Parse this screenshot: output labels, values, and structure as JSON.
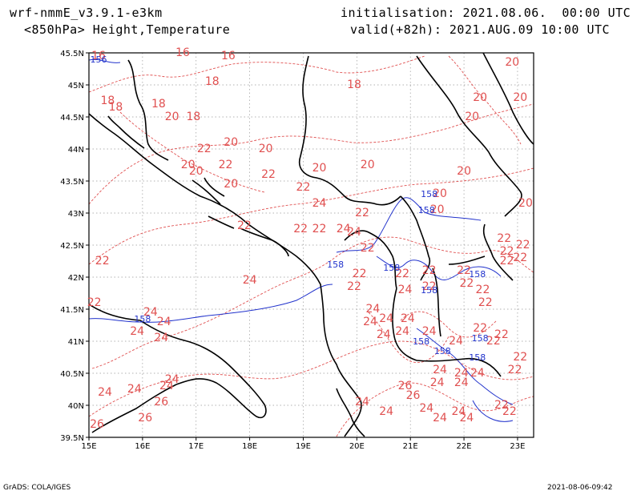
{
  "header": {
    "model": "wrf-nmmE_v3.9.1-e3km",
    "fields": "<850hPa> Height,Temperature",
    "init": "initialisation: 2021.08.06.  00:00 UTC",
    "valid": "valid(+82h): 2021.AUG.09 10:00 UTC"
  },
  "footer": {
    "credit": "GrADS: COLA/IGES",
    "stamp": "2021-08-06-09:42"
  },
  "axes": {
    "lon_ticks": [
      "15E",
      "16E",
      "17E",
      "18E",
      "19E",
      "20E",
      "21E",
      "22E",
      "23E"
    ],
    "lat_ticks": [
      "45.5N",
      "45N",
      "44.5N",
      "44N",
      "43.5N",
      "43N",
      "42.5N",
      "42N",
      "41.5N",
      "41N",
      "40.5N",
      "40N",
      "39.5N"
    ],
    "lon_range": [
      15,
      23.3
    ],
    "lat_range": [
      39.5,
      45.5
    ]
  },
  "colors": {
    "temperature": "#e05050",
    "height": "#2233cc",
    "coast": "#000000",
    "grid": "#999999"
  },
  "temperature_labels": [
    {
      "text": "16",
      "lon": 15.18,
      "lat": 45.4
    },
    {
      "text": "16",
      "lon": 16.75,
      "lat": 45.45
    },
    {
      "text": "16",
      "lon": 17.6,
      "lat": 45.4
    },
    {
      "text": "18",
      "lon": 15.35,
      "lat": 44.7
    },
    {
      "text": "18",
      "lon": 15.5,
      "lat": 44.6
    },
    {
      "text": "18",
      "lon": 16.3,
      "lat": 44.65
    },
    {
      "text": "18",
      "lon": 17.3,
      "lat": 45.0
    },
    {
      "text": "18",
      "lon": 19.95,
      "lat": 44.95
    },
    {
      "text": "18",
      "lon": 16.95,
      "lat": 44.45
    },
    {
      "text": "20",
      "lon": 16.55,
      "lat": 44.45
    },
    {
      "text": "20",
      "lon": 17.65,
      "lat": 44.05
    },
    {
      "text": "20",
      "lon": 18.3,
      "lat": 43.95
    },
    {
      "text": "20",
      "lon": 16.85,
      "lat": 43.7
    },
    {
      "text": "20",
      "lon": 17.0,
      "lat": 43.6
    },
    {
      "text": "20",
      "lon": 17.65,
      "lat": 43.4
    },
    {
      "text": "20",
      "lon": 19.3,
      "lat": 43.65
    },
    {
      "text": "20",
      "lon": 20.2,
      "lat": 43.7
    },
    {
      "text": "20",
      "lon": 22.3,
      "lat": 44.75
    },
    {
      "text": "20",
      "lon": 22.15,
      "lat": 44.45
    },
    {
      "text": "20",
      "lon": 22.9,
      "lat": 45.3
    },
    {
      "text": "20",
      "lon": 23.05,
      "lat": 44.75
    },
    {
      "text": "20",
      "lon": 22.0,
      "lat": 43.6
    },
    {
      "text": "20",
      "lon": 21.55,
      "lat": 43.25
    },
    {
      "text": "20",
      "lon": 21.5,
      "lat": 43.0
    },
    {
      "text": "20",
      "lon": 23.15,
      "lat": 43.1
    },
    {
      "text": "22",
      "lon": 17.15,
      "lat": 43.95
    },
    {
      "text": "22",
      "lon": 17.55,
      "lat": 43.7
    },
    {
      "text": "22",
      "lon": 18.35,
      "lat": 43.55
    },
    {
      "text": "22",
      "lon": 19.0,
      "lat": 43.35
    },
    {
      "text": "22",
      "lon": 18.95,
      "lat": 42.7
    },
    {
      "text": "22",
      "lon": 19.3,
      "lat": 42.7
    },
    {
      "text": "22",
      "lon": 20.1,
      "lat": 42.95
    },
    {
      "text": "22",
      "lon": 17.9,
      "lat": 42.75
    },
    {
      "text": "22",
      "lon": 15.25,
      "lat": 42.2
    },
    {
      "text": "22",
      "lon": 15.1,
      "lat": 41.55
    },
    {
      "text": "22",
      "lon": 20.2,
      "lat": 42.4
    },
    {
      "text": "22",
      "lon": 20.05,
      "lat": 42.0
    },
    {
      "text": "22",
      "lon": 19.95,
      "lat": 41.8
    },
    {
      "text": "22",
      "lon": 20.85,
      "lat": 42.0
    },
    {
      "text": "22",
      "lon": 21.35,
      "lat": 42.05
    },
    {
      "text": "22",
      "lon": 21.35,
      "lat": 41.8
    },
    {
      "text": "22",
      "lon": 22.0,
      "lat": 42.05
    },
    {
      "text": "22",
      "lon": 22.05,
      "lat": 41.85
    },
    {
      "text": "22",
      "lon": 22.35,
      "lat": 41.75
    },
    {
      "text": "22",
      "lon": 22.4,
      "lat": 41.55
    },
    {
      "text": "22",
      "lon": 22.75,
      "lat": 42.55
    },
    {
      "text": "22",
      "lon": 22.8,
      "lat": 42.35
    },
    {
      "text": "22",
      "lon": 22.8,
      "lat": 42.2
    },
    {
      "text": "22",
      "lon": 23.1,
      "lat": 42.45
    },
    {
      "text": "22",
      "lon": 23.05,
      "lat": 42.25
    },
    {
      "text": "22",
      "lon": 22.3,
      "lat": 41.15
    },
    {
      "text": "22",
      "lon": 22.7,
      "lat": 41.05
    },
    {
      "text": "22",
      "lon": 22.55,
      "lat": 40.95
    },
    {
      "text": "22",
      "lon": 23.05,
      "lat": 40.7
    },
    {
      "text": "22",
      "lon": 22.95,
      "lat": 40.5
    },
    {
      "text": "22",
      "lon": 22.7,
      "lat": 39.95
    },
    {
      "text": "22",
      "lon": 22.85,
      "lat": 39.85
    },
    {
      "text": "24",
      "lon": 18.0,
      "lat": 41.9
    },
    {
      "text": "24",
      "lon": 16.15,
      "lat": 41.4
    },
    {
      "text": "24",
      "lon": 16.4,
      "lat": 41.25
    },
    {
      "text": "24",
      "lon": 15.9,
      "lat": 41.1
    },
    {
      "text": "24",
      "lon": 16.35,
      "lat": 41.0
    },
    {
      "text": "24",
      "lon": 19.3,
      "lat": 43.1
    },
    {
      "text": "24",
      "lon": 19.75,
      "lat": 42.7
    },
    {
      "text": "24",
      "lon": 19.95,
      "lat": 42.65
    },
    {
      "text": "24",
      "lon": 20.3,
      "lat": 41.45
    },
    {
      "text": "24",
      "lon": 20.55,
      "lat": 41.3
    },
    {
      "text": "24",
      "lon": 20.25,
      "lat": 41.25
    },
    {
      "text": "24",
      "lon": 20.5,
      "lat": 41.05
    },
    {
      "text": "24",
      "lon": 20.9,
      "lat": 41.75
    },
    {
      "text": "24",
      "lon": 20.95,
      "lat": 41.3
    },
    {
      "text": "24",
      "lon": 20.85,
      "lat": 41.1
    },
    {
      "text": "24",
      "lon": 21.35,
      "lat": 41.1
    },
    {
      "text": "24",
      "lon": 21.85,
      "lat": 40.95
    },
    {
      "text": "24",
      "lon": 21.55,
      "lat": 40.5
    },
    {
      "text": "24",
      "lon": 21.5,
      "lat": 40.3
    },
    {
      "text": "24",
      "lon": 21.95,
      "lat": 40.45
    },
    {
      "text": "24",
      "lon": 21.95,
      "lat": 40.3
    },
    {
      "text": "24",
      "lon": 22.25,
      "lat": 40.45
    },
    {
      "text": "24",
      "lon": 15.3,
      "lat": 40.15
    },
    {
      "text": "24",
      "lon": 15.85,
      "lat": 40.2
    },
    {
      "text": "24",
      "lon": 16.45,
      "lat": 40.25
    },
    {
      "text": "24",
      "lon": 16.55,
      "lat": 40.35
    },
    {
      "text": "24",
      "lon": 20.1,
      "lat": 40.0
    },
    {
      "text": "24",
      "lon": 20.55,
      "lat": 39.85
    },
    {
      "text": "24",
      "lon": 21.3,
      "lat": 39.9
    },
    {
      "text": "24",
      "lon": 21.55,
      "lat": 39.75
    },
    {
      "text": "24",
      "lon": 21.9,
      "lat": 39.85
    },
    {
      "text": "24",
      "lon": 22.05,
      "lat": 39.75
    },
    {
      "text": "26",
      "lon": 16.35,
      "lat": 40.0
    },
    {
      "text": "26",
      "lon": 16.05,
      "lat": 39.75
    },
    {
      "text": "26",
      "lon": 20.9,
      "lat": 40.25
    },
    {
      "text": "26",
      "lon": 21.05,
      "lat": 40.1
    },
    {
      "text": "26",
      "lon": 15.15,
      "lat": 39.65
    }
  ],
  "height_labels": [
    {
      "text": "156",
      "lon": 15.18,
      "lat": 45.35
    },
    {
      "text": "158",
      "lon": 21.35,
      "lat": 43.25
    },
    {
      "text": "158",
      "lon": 21.3,
      "lat": 43.0
    },
    {
      "text": "158",
      "lon": 19.6,
      "lat": 42.15
    },
    {
      "text": "158",
      "lon": 20.65,
      "lat": 42.1
    },
    {
      "text": "158",
      "lon": 21.35,
      "lat": 41.75
    },
    {
      "text": "158",
      "lon": 22.25,
      "lat": 42.0
    },
    {
      "text": "158",
      "lon": 16.0,
      "lat": 41.3
    },
    {
      "text": "158",
      "lon": 21.2,
      "lat": 40.95
    },
    {
      "text": "158",
      "lon": 22.3,
      "lat": 41.0
    },
    {
      "text": "158",
      "lon": 21.6,
      "lat": 40.8
    },
    {
      "text": "158",
      "lon": 22.25,
      "lat": 40.7
    }
  ]
}
